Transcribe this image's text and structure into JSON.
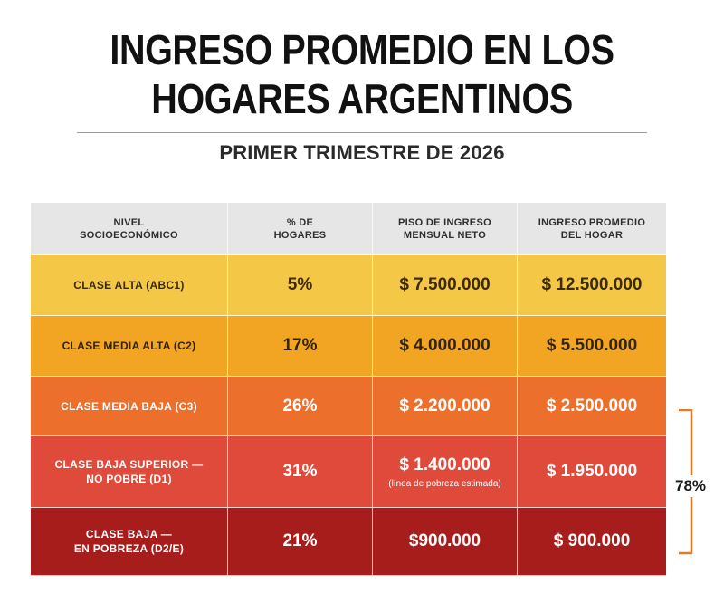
{
  "title": {
    "line1": "INGRESO PROMEDIO EN LOS",
    "line2": "HOGARES ARGENTINOS"
  },
  "subtitle": "PRIMER TRIMESTRE DE 2026",
  "table": {
    "headers": [
      "NIVEL\nSOCIOECONÓMICO",
      "% DE\nHOGARES",
      "PISO DE INGRESO\nMENSUAL NETO",
      "INGRESO PROMEDIO\nDEL HOGAR"
    ],
    "rows": [
      {
        "label": "CLASE ALTA (ABC1)",
        "pct": "5%",
        "floor": "$ 7.500.000",
        "avg": "$ 12.500.000",
        "color": "#f4c846"
      },
      {
        "label": "CLASE MEDIA ALTA (C2)",
        "pct": "17%",
        "floor": "$ 4.000.000",
        "avg": "$ 5.500.000",
        "color": "#f1a522"
      },
      {
        "label": "CLASE MEDIA BAJA (C3)",
        "pct": "26%",
        "floor": "$ 2.200.000",
        "avg": "$ 2.500.000",
        "color": "#ec6f2c"
      },
      {
        "label": "CLASE BAJA SUPERIOR —\nNO POBRE (D1)",
        "pct": "31%",
        "floor": "$ 1.400.000",
        "floor_note": "(línea de pobreza estimada)",
        "avg": "$ 1.950.000",
        "color": "#df4a3a"
      },
      {
        "label": "CLASE BAJA —\nEN POBREZA (D2/E)",
        "pct": "21%",
        "floor": "$900.000",
        "avg": "$ 900.000",
        "color": "#a71d1c"
      }
    ]
  },
  "bracket": {
    "total": "78%",
    "color": "#e07a28"
  }
}
